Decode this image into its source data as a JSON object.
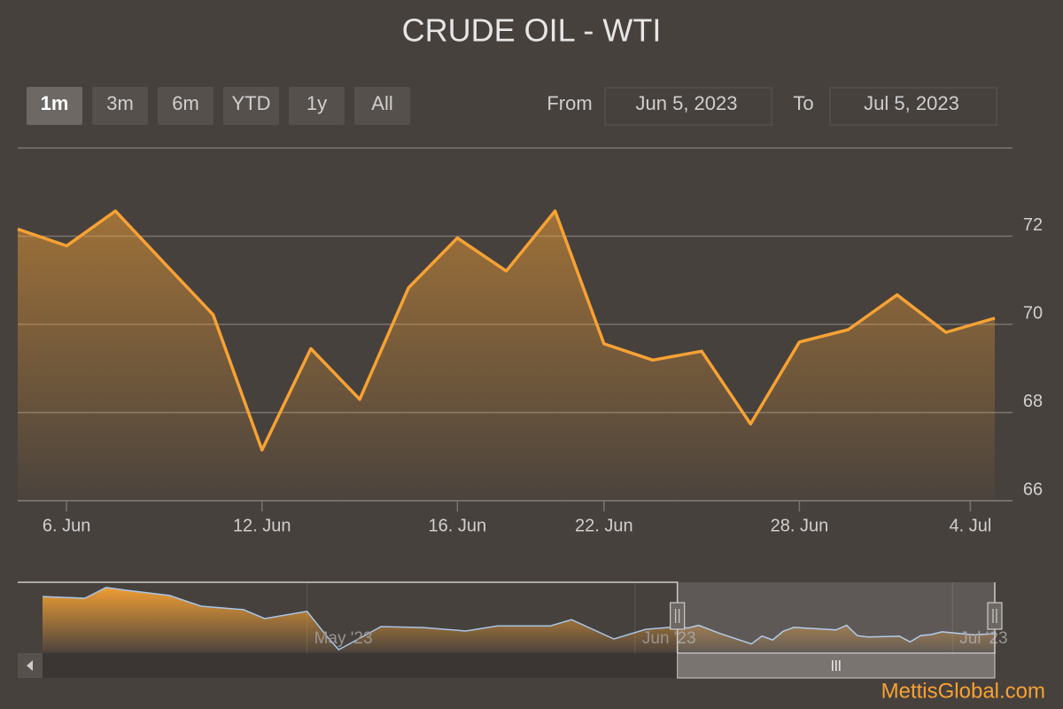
{
  "chart_data": {
    "type": "line",
    "title": "CRUDE OIL - WTI",
    "range_buttons": [
      "1m",
      "3m",
      "6m",
      "YTD",
      "1y",
      "All"
    ],
    "selected_button": 0,
    "from_label": "From",
    "from_value": "Jun 5, 2023",
    "to_label": "To",
    "to_value": "Jul 5, 2023",
    "color": "#f7a234",
    "x": [
      "2023-06-05",
      "2023-06-06",
      "2023-06-07",
      "2023-06-08",
      "2023-06-09",
      "2023-06-12",
      "2023-06-13",
      "2023-06-14",
      "2023-06-15",
      "2023-06-16",
      "2023-06-20",
      "2023-06-21",
      "2023-06-22",
      "2023-06-23",
      "2023-06-26",
      "2023-06-27",
      "2023-06-28",
      "2023-06-29",
      "2023-06-30",
      "2023-07-03",
      "2023-07-05"
    ],
    "values": [
      72.16,
      71.78,
      72.57,
      71.39,
      70.22,
      67.15,
      69.45,
      68.3,
      70.83,
      71.96,
      71.21,
      72.57,
      69.56,
      69.19,
      69.39,
      67.74,
      69.6,
      69.88,
      70.67,
      69.82,
      70.14
    ],
    "ylim": [
      66,
      74
    ],
    "yticks": [
      66,
      68,
      70,
      72
    ],
    "xticks": [
      {
        "value": "2023-06-06",
        "label": "6. Jun"
      },
      {
        "value": "2023-06-12",
        "label": "12. Jun"
      },
      {
        "value": "2023-06-16",
        "label": "16. Jun"
      },
      {
        "value": "2023-06-22",
        "label": "22. Jun"
      },
      {
        "value": "2023-06-28",
        "label": "28. Jun"
      },
      {
        "value": "2023-07-04",
        "label": "4. Jul"
      }
    ],
    "grid": true,
    "navigator": {
      "x": [
        "2023-04-06",
        "2023-04-10",
        "2023-04-12",
        "2023-04-14",
        "2023-04-18",
        "2023-04-21",
        "2023-04-25",
        "2023-04-27",
        "2023-05-01",
        "2023-05-03",
        "2023-05-04",
        "2023-05-08",
        "2023-05-12",
        "2023-05-16",
        "2023-05-19",
        "2023-05-24",
        "2023-05-26",
        "2023-05-30",
        "2023-06-02"
      ],
      "values": [
        80.9,
        80.4,
        83.5,
        82.7,
        81.2,
        78.1,
        77.1,
        74.5,
        76.6,
        68.9,
        65.5,
        72.2,
        71.9,
        70.9,
        72.4,
        72.4,
        74.2,
        68.6,
        71.4
      ],
      "xlim": [
        "2023-04-06",
        "2023-07-05"
      ],
      "ylim": [
        65,
        84
      ],
      "xticks": [
        {
          "value": "2023-05-01",
          "label": "May '23"
        },
        {
          "value": "2023-06-01",
          "label": "Jun '23"
        },
        {
          "value": "2023-07-01",
          "label": "Jul '23"
        }
      ]
    },
    "watermark": "MettisGlobal.com"
  }
}
